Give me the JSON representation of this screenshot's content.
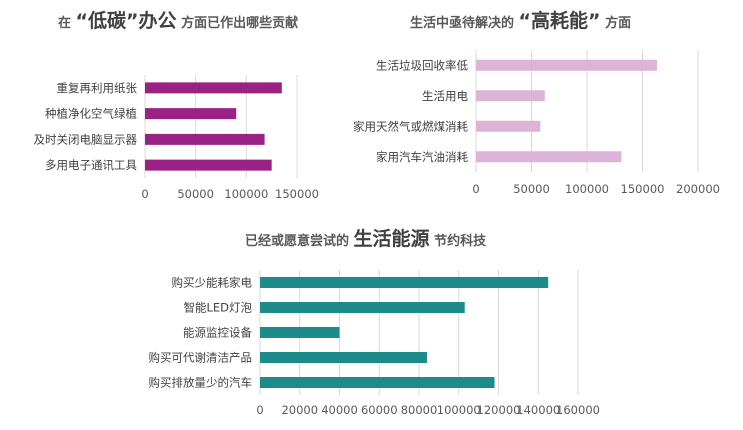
{
  "chart_data": [
    {
      "type": "bar",
      "orientation": "horizontal",
      "title": {
        "pre": "在",
        "em": "“低碳”办公",
        "post": "方面已作出哪些贡献"
      },
      "categories": [
        "重复再利用纸张",
        "种植净化空气绿植",
        "及时关闭电脑显示器",
        "多用电子通讯工具"
      ],
      "values": [
        135000,
        90000,
        118000,
        125000
      ],
      "xlim": [
        0,
        150000
      ],
      "xticks": [
        0,
        50000,
        100000,
        150000
      ],
      "grid": true,
      "color": "#9b2285"
    },
    {
      "type": "bar",
      "orientation": "horizontal",
      "title": {
        "pre": "生活中亟待解决的",
        "em": "“高耗能”",
        "post": "方面"
      },
      "categories": [
        "生活垃圾回收率低",
        "生活用电",
        "家用天然气或燃煤消耗",
        "家用汽车汽油消耗"
      ],
      "values": [
        163000,
        62000,
        58000,
        131000
      ],
      "xlim": [
        0,
        200000
      ],
      "xticks": [
        0,
        50000,
        100000,
        150000,
        200000
      ],
      "grid": true,
      "color": "#dcb4d7"
    },
    {
      "type": "bar",
      "orientation": "horizontal",
      "title": {
        "pre": "已经或愿意尝试的",
        "em": "生活能源",
        "post": "节约科技"
      },
      "categories": [
        "购买少能耗家电",
        "智能LED灯泡",
        "能源监控设备",
        "购买可代谢清洁产品",
        "购买排放量少的汽车"
      ],
      "values": [
        145000,
        103000,
        40000,
        84000,
        118000
      ],
      "xlim": [
        0,
        160000
      ],
      "xticks": [
        0,
        20000,
        40000,
        60000,
        80000,
        100000,
        120000,
        140000,
        160000
      ],
      "grid": true,
      "color": "#1d8a8c"
    }
  ]
}
